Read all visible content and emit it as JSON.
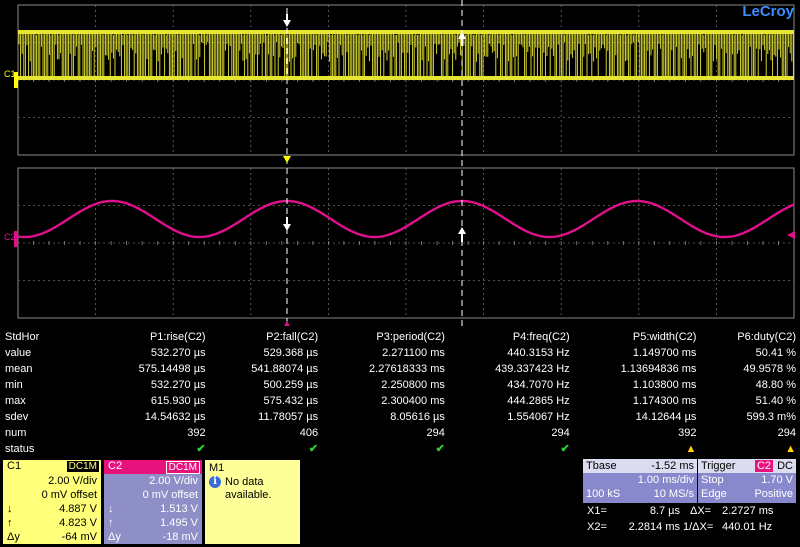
{
  "brand": "LeCroy",
  "channels": {
    "c1_label": "C1",
    "c2_label": "C2"
  },
  "colors": {
    "c1": "#ffff7a",
    "c2": "#e8127c",
    "trace1": "#e6e632",
    "trace2": "#e0108c"
  },
  "measurements": {
    "corner": "StdHor",
    "params": [
      "P1:rise(C2)",
      "P2:fall(C2)",
      "P3:period(C2)",
      "P4:freq(C2)",
      "P5:width(C2)",
      "P6:duty(C2)"
    ],
    "rows": [
      {
        "label": "value",
        "cells": [
          "532.270 µs",
          "529.368 µs",
          "2.271100 ms",
          "440.3153 Hz",
          "1.149700 ms",
          "50.41 %"
        ]
      },
      {
        "label": "mean",
        "cells": [
          "575.14498 µs",
          "541.88074 µs",
          "2.27618333 ms",
          "439.337423 Hz",
          "1.13694836 ms",
          "49.9578 %"
        ]
      },
      {
        "label": "min",
        "cells": [
          "532.270 µs",
          "500.259 µs",
          "2.250800 ms",
          "434.7070 Hz",
          "1.103800 ms",
          "48.80 %"
        ]
      },
      {
        "label": "max",
        "cells": [
          "615.930 µs",
          "575.432 µs",
          "2.300400 ms",
          "444.2865 Hz",
          "1.174300 ms",
          "51.40 %"
        ]
      },
      {
        "label": "sdev",
        "cells": [
          "14.54632 µs",
          "11.78057 µs",
          "8.05616 µs",
          "1.554067 Hz",
          "14.12644 µs",
          "599.3 m%"
        ]
      },
      {
        "label": "num",
        "cells": [
          "392",
          "406",
          "294",
          "294",
          "392",
          "294"
        ]
      }
    ],
    "status_label": "status",
    "status": [
      "ok",
      "ok",
      "ok",
      "ok",
      "warn",
      "warn"
    ]
  },
  "c1": {
    "title": "C1",
    "coupling": "DC1M",
    "vdiv": "2.00 V/div",
    "offset": "0 mV offset",
    "down_sym": "↓",
    "down": "4.887 V",
    "up_sym": "↑",
    "up": "4.823 V",
    "dy_sym": "Δy",
    "dy": "-64 mV"
  },
  "c2": {
    "title": "C2",
    "coupling": "DC1M",
    "vdiv": "2.00 V/div",
    "offset": "0 mV offset",
    "down_sym": "↓",
    "down": "1.513 V",
    "up_sym": "↑",
    "up": "1.495 V",
    "dy_sym": "Δy",
    "dy": "-18 mV"
  },
  "m1": {
    "title": "M1",
    "message": "No data available."
  },
  "timebase": {
    "label": "Tbase",
    "delay": "-1.52 ms",
    "tdiv": "1.00 ms/div",
    "samples": "100 kS",
    "rate": "10 MS/s"
  },
  "trigger": {
    "label": "Trigger",
    "source": "C2",
    "coupling": "DC",
    "mode": "Stop",
    "level": "1.70 V",
    "type": "Edge",
    "slope": "Positive"
  },
  "cursors": {
    "x1_label": "X1=",
    "x1": "8.7 µs",
    "dx_label": "ΔX=",
    "dx": "2.2727 ms",
    "x2_label": "X2=",
    "x2": "2.2814 ms",
    "inv_label": "1/ΔX=",
    "inv": "440.01 Hz"
  }
}
